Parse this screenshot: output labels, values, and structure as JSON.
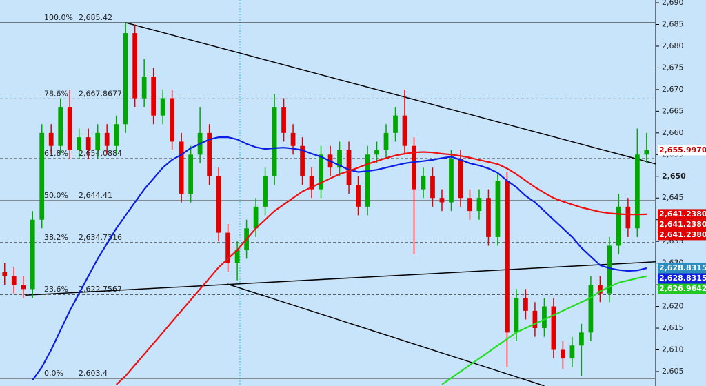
{
  "chart_data": {
    "type": "candlestick",
    "ylim": [
      2601.66,
      2690.64
    ],
    "xlim": [
      -0.5,
      69.9
    ],
    "up_color": "#00a800",
    "down_color": "#e00000",
    "bold_ytick": 2650,
    "yticks": [
      {
        "value": 2605,
        "label": "2,605"
      },
      {
        "value": 2610,
        "label": "2,610"
      },
      {
        "value": 2615,
        "label": "2,615"
      },
      {
        "value": 2620,
        "label": "2,620"
      },
      {
        "value": 2625,
        "label": "2,625"
      },
      {
        "value": 2630,
        "label": "2,630"
      },
      {
        "value": 2635,
        "label": "2,635"
      },
      {
        "value": 2640,
        "label": "2,640"
      },
      {
        "value": 2645,
        "label": "2,645"
      },
      {
        "value": 2650,
        "label": "2,650"
      },
      {
        "value": 2655,
        "label": "2,655"
      },
      {
        "value": 2660,
        "label": "2,660"
      },
      {
        "value": 2665,
        "label": "2,665"
      },
      {
        "value": 2670,
        "label": "2,670"
      },
      {
        "value": 2675,
        "label": "2,675"
      },
      {
        "value": 2680,
        "label": "2,680"
      },
      {
        "value": 2685,
        "label": "2,685"
      },
      {
        "value": 2690,
        "label": "2,690"
      }
    ],
    "open": [
      2628,
      2627,
      2625,
      2624,
      2640,
      2660,
      2657,
      2666,
      2656,
      2659,
      2656,
      2660,
      2657,
      2662,
      2683,
      2668,
      2673,
      2664,
      2668,
      2658,
      2646,
      2655,
      2660,
      2650,
      2637,
      2630,
      2633,
      2638,
      2643,
      2650,
      2666,
      2660,
      2657,
      2650,
      2647,
      2655,
      2652,
      2656,
      2648,
      2643,
      2655,
      2656,
      2660,
      2664,
      2657,
      2647,
      2650,
      2645,
      2644,
      2654,
      2645,
      2642,
      2645,
      2636,
      2649,
      2614,
      2622,
      2619,
      2615,
      2620,
      2610,
      2608,
      2611,
      2614,
      2625,
      2623,
      2634,
      2643,
      2638,
      2655
    ],
    "high": [
      2630,
      2629,
      2627,
      2642,
      2662,
      2662,
      2668,
      2670,
      2661,
      2661,
      2662,
      2662,
      2664,
      2685.4,
      2685,
      2677,
      2675,
      2670,
      2670,
      2660,
      2657,
      2666,
      2662,
      2652,
      2639,
      2635,
      2640,
      2645,
      2652,
      2669,
      2668,
      2662,
      2659,
      2652,
      2657,
      2657,
      2658,
      2658,
      2650,
      2657,
      2658,
      2662,
      2666,
      2670,
      2659,
      2652,
      2652,
      2647,
      2656,
      2656,
      2647,
      2647,
      2647,
      2651,
      2651,
      2624,
      2624,
      2621,
      2622,
      2622,
      2612,
      2613,
      2616,
      2627,
      2627,
      2636,
      2646,
      2645,
      2661,
      2660
    ],
    "low": [
      2625,
      2623,
      2622,
      2622,
      2638,
      2655,
      2655,
      2654,
      2654,
      2654,
      2654,
      2655,
      2655,
      2660,
      2666,
      2666,
      2662,
      2662,
      2656,
      2644,
      2644,
      2653,
      2648,
      2635,
      2628,
      2626,
      2631,
      2636,
      2641,
      2648,
      2658,
      2655,
      2648,
      2645,
      2645,
      2650,
      2650,
      2646,
      2641,
      2641,
      2653,
      2654,
      2658,
      2655,
      2632,
      2645,
      2643,
      2642,
      2642,
      2643,
      2640,
      2640,
      2634,
      2634,
      2606,
      2612,
      2617,
      2613,
      2613,
      2608,
      2605.5,
      2606,
      2604,
      2612,
      2621,
      2621,
      2632,
      2636,
      2636,
      2653
    ],
    "close": [
      2627,
      2625,
      2624,
      2640,
      2660,
      2657,
      2666,
      2656,
      2659,
      2656,
      2660,
      2657,
      2662,
      2683,
      2668,
      2673,
      2664,
      2668,
      2658,
      2646,
      2655,
      2660,
      2650,
      2637,
      2630,
      2633,
      2638,
      2643,
      2650,
      2666,
      2660,
      2657,
      2650,
      2647,
      2655,
      2652,
      2656,
      2648,
      2643,
      2655,
      2656,
      2660,
      2664,
      2657,
      2647,
      2650,
      2645,
      2644,
      2654,
      2645,
      2642,
      2645,
      2636,
      2649,
      2614,
      2622,
      2619,
      2615,
      2620,
      2610,
      2608,
      2611,
      2614,
      2625,
      2623,
      2634,
      2643,
      2638,
      2655,
      2655.997
    ],
    "series": [
      {
        "color": "#0a1ee6",
        "values": [
          null,
          null,
          null,
          2603,
          2606,
          2610,
          2614.5,
          2619,
          2623,
          2627,
          2631,
          2634.5,
          2638,
          2641,
          2644,
          2647,
          2649.5,
          2652,
          2653.8,
          2655,
          2656.5,
          2657.5,
          2658.5,
          2659,
          2659,
          2658.5,
          2657.5,
          2656.7,
          2656.3,
          2656.5,
          2656.6,
          2656.4,
          2656,
          2655.2,
          2654.5,
          2653.5,
          2652.5,
          2651.5,
          2651,
          2651.2,
          2651.5,
          2652,
          2652.5,
          2653,
          2653.3,
          2653.5,
          2653.8,
          2654.2,
          2654.5,
          2653.8,
          2653,
          2652.5,
          2651.8,
          2650.8,
          2649,
          2647.5,
          2645.5,
          2644,
          2642,
          2640,
          2638,
          2636,
          2633.5,
          2631.5,
          2629.5,
          2628.8,
          2628.4,
          2628.2,
          2628.3,
          2628.8315
        ]
      },
      {
        "color": "#ee1010",
        "values": [
          null,
          null,
          null,
          null,
          null,
          null,
          null,
          null,
          null,
          null,
          null,
          null,
          2602,
          2604,
          2606.5,
          2609,
          2611.5,
          2614,
          2616.5,
          2619,
          2621.5,
          2624,
          2626.5,
          2629,
          2631,
          2633,
          2635.5,
          2638,
          2640,
          2642,
          2643.5,
          2645,
          2646.5,
          2647.5,
          2648.5,
          2649.5,
          2650.5,
          2651.2,
          2652,
          2652.8,
          2653.5,
          2654.2,
          2654.8,
          2655.2,
          2655.5,
          2655.6,
          2655.5,
          2655.2,
          2655,
          2654.7,
          2654.3,
          2653.8,
          2653.3,
          2652.8,
          2651.8,
          2650.5,
          2649,
          2647.5,
          2646.2,
          2645,
          2644.2,
          2643.5,
          2642.8,
          2642.3,
          2641.8,
          2641.5,
          2641.3,
          2641.2,
          2641.2,
          2641.238
        ]
      },
      {
        "color": "#22dd22",
        "values": [
          null,
          null,
          null,
          null,
          null,
          null,
          null,
          null,
          null,
          null,
          null,
          null,
          null,
          null,
          null,
          null,
          null,
          null,
          null,
          null,
          null,
          null,
          null,
          null,
          null,
          null,
          null,
          null,
          null,
          null,
          null,
          null,
          null,
          null,
          null,
          null,
          null,
          null,
          null,
          null,
          null,
          null,
          null,
          null,
          null,
          null,
          null,
          2602,
          2603.5,
          2605,
          2606.5,
          2608,
          2609.5,
          2611,
          2612.5,
          2614,
          2615,
          2616,
          2617,
          2618,
          2619,
          2620,
          2621,
          2622,
          2623.5,
          2624.5,
          2625.5,
          2626,
          2626.5,
          2626.9642
        ]
      }
    ],
    "trend_lines": [
      {
        "x": [
          13,
          75.3
        ],
        "y": [
          2685.42,
          2649.8
        ]
      },
      {
        "x": [
          2.2,
          75.3
        ],
        "y": [
          2622.6,
          2630.9
        ]
      },
      {
        "x": [
          23.9,
          58
        ],
        "y": [
          2625.2,
          2601.7
        ]
      }
    ],
    "fib_levels": {
      "labels": [
        "100.0%",
        "78.6%",
        "61.8%",
        "50.0%",
        "38.2%",
        "23.6%",
        "0.0%"
      ],
      "values": [
        2685.42,
        2667.8677,
        2654.0884,
        2644.41,
        2634.7316,
        2622.7567,
        2603.4
      ],
      "value_labels": [
        "2,685.42",
        "2,667.8677",
        "2,654.0884",
        "2,644.41",
        "2,634.7316",
        "2,622.7567",
        "2,603.4"
      ],
      "styles": [
        "solid",
        "dashed",
        "dashed",
        "solid",
        "dashed",
        "dashed",
        "solid"
      ]
    },
    "price_tags": {
      "values": [
        2655.997,
        2641.238,
        2641.238,
        2641.238,
        2628.8315,
        2628.8315,
        2626.9642
      ],
      "value_labels": [
        "2,655.9970",
        "2,641.2380",
        "2,641.2380",
        "2,641.2380",
        "2,628.8315",
        "2,628.8315",
        "2,626.9642"
      ],
      "colors": [
        "#ffffff",
        "#e00000",
        "#e00000",
        "#e00000",
        "#2a8fc0",
        "#1020e0",
        "#22c822"
      ],
      "text_colors": [
        "#d00000",
        "#ffffff",
        "#ffffff",
        "#ffffff",
        "#ffffff",
        "#ffffff",
        "#ffffff"
      ]
    }
  }
}
